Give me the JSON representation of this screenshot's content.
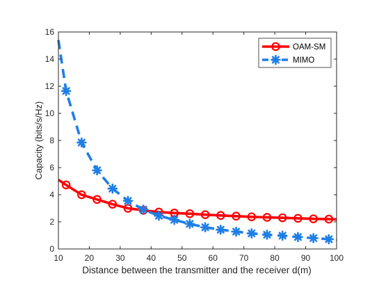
{
  "chart_data": {
    "type": "line",
    "title": "",
    "xlabel": "Distance between the transmitter and the receiver d(m)",
    "ylabel": "Capacity (bits/s/Hz)",
    "xlim": [
      10,
      100
    ],
    "ylim": [
      0,
      16
    ],
    "xticks": [
      10,
      20,
      30,
      40,
      50,
      60,
      70,
      80,
      90,
      100
    ],
    "yticks": [
      0,
      2,
      4,
      6,
      8,
      10,
      12,
      14,
      16
    ],
    "grid": false,
    "legend_position": "top-right",
    "series": [
      {
        "name": "OAM-SM",
        "color": "#ff0000",
        "line_style": "solid",
        "marker": "circle",
        "x": [
          10,
          12.5,
          17.5,
          22.5,
          27.5,
          32.5,
          37.5,
          42.5,
          47.5,
          52.5,
          57.5,
          62.5,
          67.5,
          72.5,
          77.5,
          82.5,
          87.5,
          92.5,
          97.5,
          100
        ],
        "y": [
          5.1,
          4.72,
          4.0,
          3.65,
          3.3,
          3.0,
          2.85,
          2.72,
          2.65,
          2.6,
          2.53,
          2.47,
          2.42,
          2.37,
          2.33,
          2.3,
          2.26,
          2.22,
          2.2,
          2.18
        ],
        "marker_x": [
          12.5,
          17.5,
          22.5,
          27.5,
          32.5,
          37.5,
          42.5,
          47.5,
          52.5,
          57.5,
          62.5,
          67.5,
          72.5,
          77.5,
          82.5,
          87.5,
          92.5,
          97.5
        ],
        "marker_y": [
          4.72,
          4.0,
          3.65,
          3.3,
          3.0,
          2.85,
          2.72,
          2.65,
          2.6,
          2.53,
          2.47,
          2.42,
          2.37,
          2.33,
          2.3,
          2.26,
          2.22,
          2.2
        ]
      },
      {
        "name": "MIMO",
        "color": "#1e7ee6",
        "line_style": "dashed",
        "marker": "asterisk",
        "x": [
          10,
          12.5,
          17.5,
          22.5,
          27.5,
          32.5,
          37.5,
          42.5,
          47.5,
          52.5,
          57.5,
          62.5,
          67.5,
          72.5,
          77.5,
          82.5,
          87.5,
          92.5,
          97.5,
          100
        ],
        "y": [
          15.4,
          11.65,
          7.85,
          5.8,
          4.45,
          3.55,
          2.9,
          2.45,
          2.15,
          1.85,
          1.6,
          1.42,
          1.28,
          1.15,
          1.05,
          0.98,
          0.88,
          0.8,
          0.72,
          0.68
        ],
        "marker_x": [
          12.5,
          17.5,
          22.5,
          27.5,
          32.5,
          37.5,
          42.5,
          47.5,
          52.5,
          57.5,
          62.5,
          67.5,
          72.5,
          77.5,
          82.5,
          87.5,
          92.5,
          97.5
        ],
        "marker_y": [
          11.65,
          7.85,
          5.8,
          4.45,
          3.55,
          2.9,
          2.45,
          2.15,
          1.85,
          1.6,
          1.42,
          1.28,
          1.15,
          1.05,
          0.98,
          0.88,
          0.8,
          0.72
        ]
      }
    ]
  }
}
